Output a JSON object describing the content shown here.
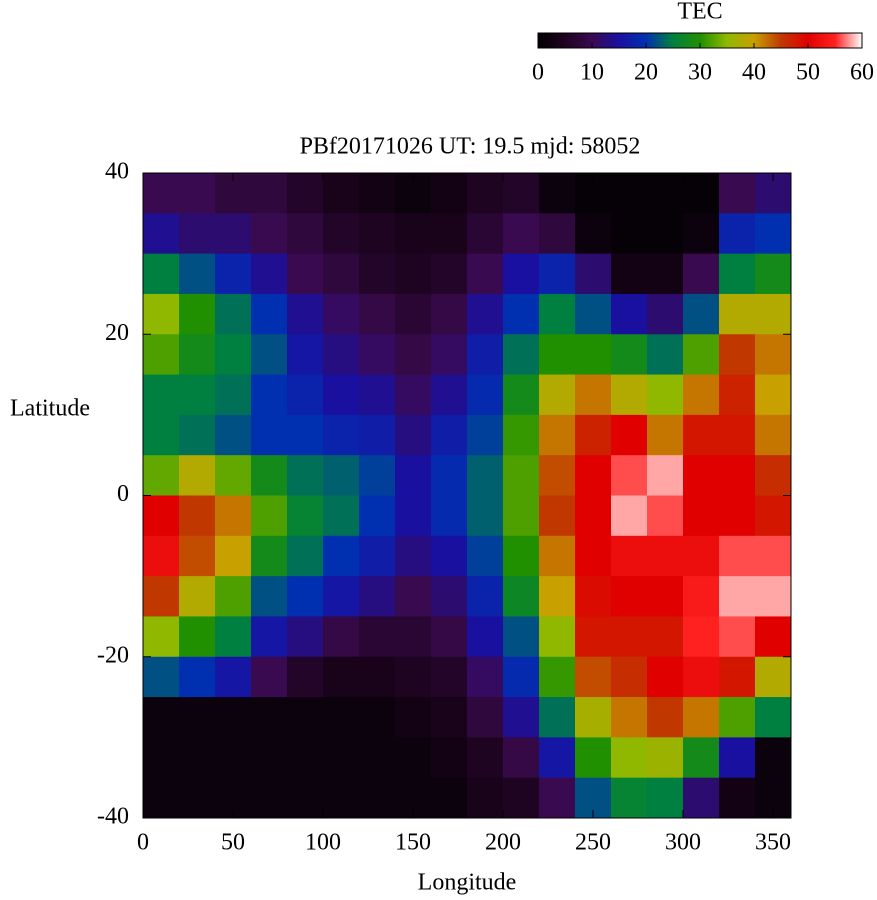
{
  "chart_data": {
    "type": "heatmap",
    "title": "PBf20171026  UT: 19.5  mjd: 58052",
    "xlabel": "Longitude",
    "ylabel": "Latitude",
    "colorbar_title": "TEC",
    "x": [
      10,
      30,
      50,
      70,
      90,
      110,
      130,
      150,
      170,
      190,
      210,
      230,
      250,
      270,
      290,
      310,
      330,
      350
    ],
    "y": [
      37.5,
      32.5,
      27.5,
      22.5,
      17.5,
      12.5,
      7.5,
      2.5,
      -2.5,
      -7.5,
      -12.5,
      -17.5,
      -22.5,
      -27.5,
      -32.5,
      -37.5
    ],
    "z": [
      [
        10,
        10,
        8,
        8,
        6,
        4,
        3,
        2,
        3,
        5,
        6,
        2,
        1,
        1,
        1,
        1,
        10,
        12
      ],
      [
        14,
        12,
        12,
        10,
        8,
        6,
        5,
        4,
        4,
        7,
        10,
        8,
        2,
        1,
        1,
        2,
        18,
        20
      ],
      [
        25,
        22,
        18,
        14,
        10,
        8,
        6,
        5,
        6,
        10,
        15,
        18,
        12,
        3,
        3,
        10,
        25,
        28
      ],
      [
        35,
        30,
        24,
        20,
        14,
        11,
        9,
        7,
        9,
        14,
        20,
        25,
        22,
        15,
        12,
        22,
        38,
        38
      ],
      [
        32,
        28,
        25,
        22,
        16,
        13,
        11,
        9,
        11,
        17,
        24,
        30,
        30,
        28,
        24,
        32,
        45,
        42
      ],
      [
        25,
        25,
        24,
        20,
        18,
        15,
        14,
        11,
        14,
        19,
        28,
        38,
        42,
        38,
        35,
        42,
        47,
        40
      ],
      [
        25,
        24,
        22,
        20,
        20,
        18,
        17,
        13,
        17,
        21,
        31,
        42,
        47,
        50,
        42,
        48,
        48,
        42
      ],
      [
        33,
        38,
        33,
        28,
        24,
        23,
        21,
        15,
        19,
        23,
        32,
        44,
        50,
        56,
        58,
        50,
        50,
        46
      ],
      [
        50,
        45,
        42,
        32,
        26,
        24,
        20,
        15,
        19,
        23,
        32,
        45,
        50,
        58,
        56,
        50,
        50,
        48
      ],
      [
        52,
        44,
        40,
        28,
        24,
        20,
        17,
        13,
        15,
        21,
        30,
        42,
        50,
        52,
        52,
        52,
        56,
        56
      ],
      [
        45,
        38,
        32,
        22,
        20,
        16,
        13,
        10,
        12,
        18,
        27,
        40,
        49,
        50,
        50,
        54,
        58,
        58
      ],
      [
        35,
        30,
        25,
        16,
        13,
        9,
        7,
        7,
        9,
        15,
        22,
        35,
        48,
        48,
        48,
        55,
        56,
        50
      ],
      [
        22,
        20,
        16,
        10,
        6,
        4,
        4,
        5,
        6,
        11,
        19,
        31,
        44,
        46,
        50,
        52,
        48,
        38
      ],
      [
        2,
        2,
        2,
        2,
        2,
        2,
        2,
        3,
        4,
        8,
        14,
        24,
        37,
        42,
        45,
        42,
        32,
        25
      ],
      [
        2,
        2,
        2,
        2,
        2,
        2,
        2,
        2,
        3,
        5,
        9,
        16,
        30,
        35,
        36,
        28,
        15,
        2
      ],
      [
        2,
        2,
        2,
        2,
        2,
        2,
        2,
        2,
        2,
        4,
        5,
        10,
        22,
        26,
        25,
        12,
        3,
        2
      ]
    ],
    "zlim": [
      0,
      60
    ],
    "zticks": [
      0,
      10,
      20,
      30,
      40,
      50,
      60
    ],
    "colormap": [
      "#000000",
      "#1e0420",
      "#3a0a50",
      "#1a10a0",
      "#0030b0",
      "#008040",
      "#209000",
      "#90b800",
      "#c8a000",
      "#c03800",
      "#e00000",
      "#ff2020",
      "#ffffff"
    ],
    "xlim": [
      0,
      360
    ],
    "xticks": [
      0,
      50,
      100,
      150,
      200,
      250,
      300,
      350
    ],
    "ylim": [
      -40,
      40
    ],
    "yticks": [
      -40,
      -20,
      0,
      20,
      40
    ]
  }
}
